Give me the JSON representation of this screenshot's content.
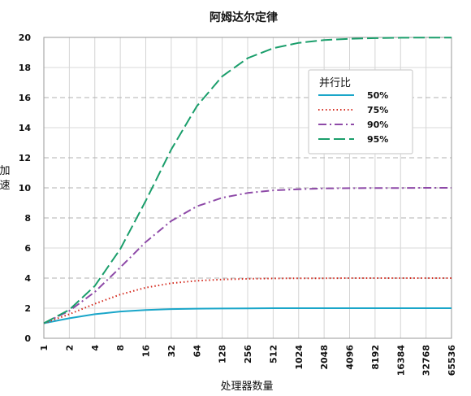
{
  "chart_data": {
    "type": "line",
    "title": "阿姆达尔定律",
    "xlabel": "处理器数量",
    "ylabel": "加速",
    "x_scale": "log2",
    "x_ticks": [
      "1",
      "2",
      "4",
      "8",
      "16",
      "32",
      "64",
      "128",
      "256",
      "512",
      "1024",
      "2048",
      "4096",
      "8192",
      "16384",
      "32768",
      "65536"
    ],
    "y_ticks": [
      "0",
      "2",
      "4",
      "6",
      "8",
      "10",
      "12",
      "14",
      "16",
      "18",
      "20"
    ],
    "ylim": [
      0,
      20
    ],
    "grid": "major vertical and horizontal",
    "legend": {
      "title": "并行比",
      "placement": "upper-right"
    },
    "x": [
      1,
      2,
      4,
      8,
      16,
      32,
      64,
      128,
      256,
      512,
      1024,
      2048,
      4096,
      8192,
      16384,
      32768,
      65536
    ],
    "series": [
      {
        "name": "50%",
        "color": "#1aa6c9",
        "dash": "solid",
        "values": [
          1.0,
          1.33,
          1.6,
          1.78,
          1.88,
          1.94,
          1.97,
          1.98,
          1.99,
          2.0,
          2.0,
          2.0,
          2.0,
          2.0,
          2.0,
          2.0,
          2.0
        ]
      },
      {
        "name": "75%",
        "color": "#d42a1e",
        "dash": "dot",
        "values": [
          1.0,
          1.6,
          2.29,
          2.91,
          3.37,
          3.66,
          3.82,
          3.91,
          3.95,
          3.98,
          3.99,
          3.99,
          4.0,
          4.0,
          4.0,
          4.0,
          4.0
        ]
      },
      {
        "name": "90%",
        "color": "#8e4aa8",
        "dash": "dashdot",
        "values": [
          1.0,
          1.82,
          3.08,
          4.71,
          6.4,
          7.8,
          8.77,
          9.34,
          9.66,
          9.83,
          9.91,
          9.96,
          9.98,
          9.99,
          9.99,
          10.0,
          10.0
        ]
      },
      {
        "name": "95%",
        "color": "#1a9e6b",
        "dash": "longdash",
        "values": [
          1.0,
          1.9,
          3.48,
          5.93,
          9.14,
          12.55,
          15.42,
          17.41,
          18.62,
          19.28,
          19.64,
          19.82,
          19.91,
          19.95,
          19.98,
          19.99,
          19.99
        ]
      }
    ]
  }
}
